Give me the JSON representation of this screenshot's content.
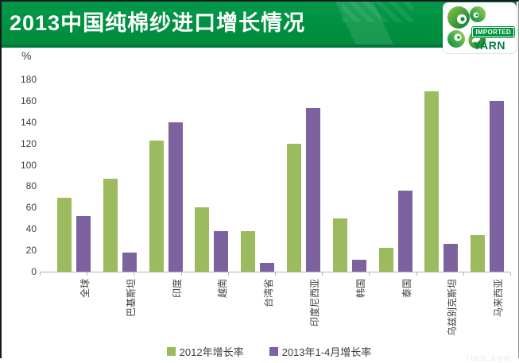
{
  "header": {
    "title": "2013中国纯棉纱进口增长情况",
    "logo": {
      "line1": "IMPORTED",
      "line2": "YARN"
    }
  },
  "watermark": "tteb.com",
  "chart_data": {
    "type": "bar",
    "title": "2013中国纯棉纱进口增长情况",
    "unit_label": "%",
    "categories": [
      "全球",
      "巴基斯坦",
      "印度",
      "越南",
      "台湾省",
      "印度尼西亚",
      "韩国",
      "泰国",
      "乌兹别克斯坦",
      "马来西亚"
    ],
    "series": [
      {
        "name": "2012年增长率",
        "color": "#9cba5e",
        "values": [
          69,
          87,
          123,
          60,
          38,
          120,
          50,
          22,
          169,
          34
        ]
      },
      {
        "name": "2013年1-4月增长率",
        "color": "#7d62a0",
        "values": [
          52,
          18,
          140,
          38,
          8,
          153,
          11,
          76,
          26,
          160
        ]
      }
    ],
    "ylim": [
      0,
      180
    ],
    "ytick_step": 20,
    "grid": false,
    "legend_position": "bottom"
  },
  "colors": {
    "header_green": "#009140",
    "header_dark_green": "#01773a",
    "series_green": "#9cba5e",
    "series_purple": "#7d62a0",
    "axis_text": "#3f3f3f",
    "axis_line": "#b3b3b3"
  }
}
